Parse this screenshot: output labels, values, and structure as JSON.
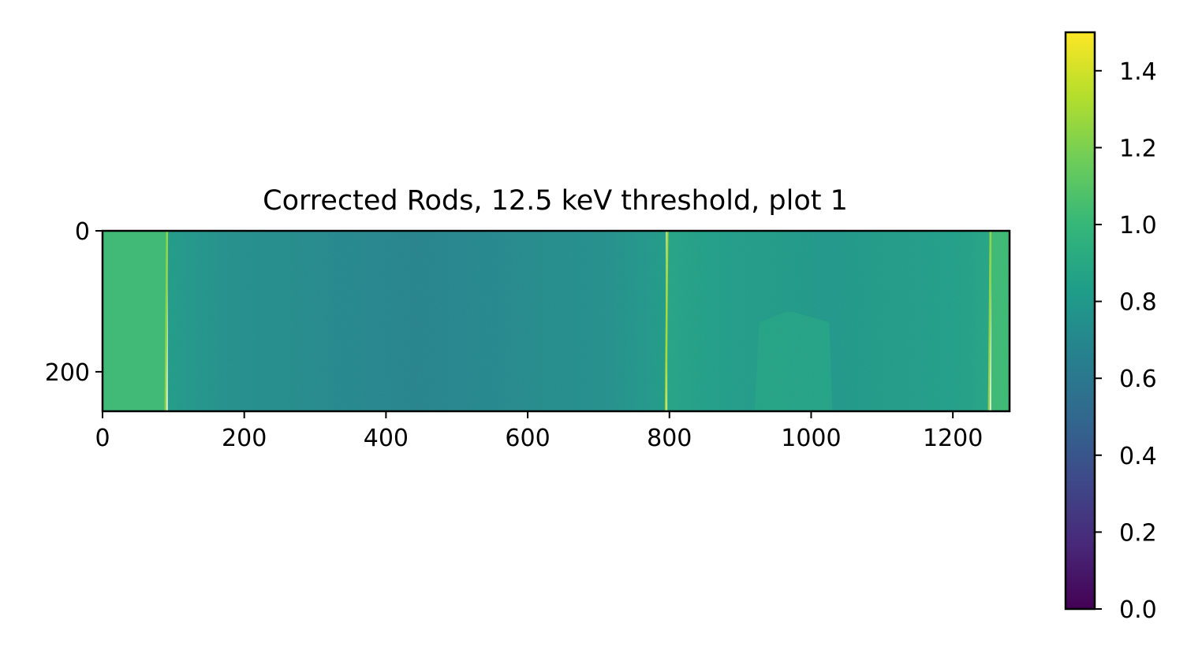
{
  "chart_data": {
    "type": "heatmap",
    "title": "Corrected Rods, 12.5 keV threshold, plot 1",
    "xlabel": "",
    "ylabel": "",
    "xlim": [
      0,
      1280
    ],
    "ylim": [
      256,
      0
    ],
    "x_ticks": [
      {
        "value": 0,
        "label": "0"
      },
      {
        "value": 200,
        "label": "200"
      },
      {
        "value": 400,
        "label": "400"
      },
      {
        "value": 600,
        "label": "600"
      },
      {
        "value": 800,
        "label": "800"
      },
      {
        "value": 1000,
        "label": "1000"
      },
      {
        "value": 1200,
        "label": "1200"
      }
    ],
    "y_ticks": [
      {
        "value": 0,
        "label": "0"
      },
      {
        "value": 200,
        "label": "200"
      }
    ],
    "colorbar": {
      "colormap": "viridis",
      "min": 0.0,
      "max": 1.5,
      "ticks": [
        {
          "value": 0.0,
          "label": "0.0"
        },
        {
          "value": 0.2,
          "label": "0.2"
        },
        {
          "value": 0.4,
          "label": "0.4"
        },
        {
          "value": 0.6,
          "label": "0.6"
        },
        {
          "value": 0.8,
          "label": "0.8"
        },
        {
          "value": 1.0,
          "label": "1.0"
        },
        {
          "value": 1.2,
          "label": "1.2"
        },
        {
          "value": 1.4,
          "label": "1.4"
        }
      ]
    },
    "regions": [
      {
        "name": "left-open-beam",
        "x": [
          0,
          90
        ],
        "value": 1.02
      },
      {
        "name": "rod-1",
        "x": [
          92,
          795
        ],
        "value_edge": 0.82,
        "value_center": 0.68
      },
      {
        "name": "rod-2",
        "x": [
          797,
          1252
        ],
        "value_edge": 0.88,
        "value_center": 0.8
      },
      {
        "name": "inset-block",
        "x": [
          920,
          1030
        ],
        "y": [
          115,
          256
        ],
        "value": 0.87
      },
      {
        "name": "right-open-beam",
        "x": [
          1254,
          1280
        ],
        "value": 1.02
      }
    ],
    "edge_lines": [
      {
        "x": 90,
        "value": 1.25
      },
      {
        "x": 796,
        "value": 1.3
      },
      {
        "x": 1252,
        "value": 1.25
      }
    ],
    "grid": false
  }
}
